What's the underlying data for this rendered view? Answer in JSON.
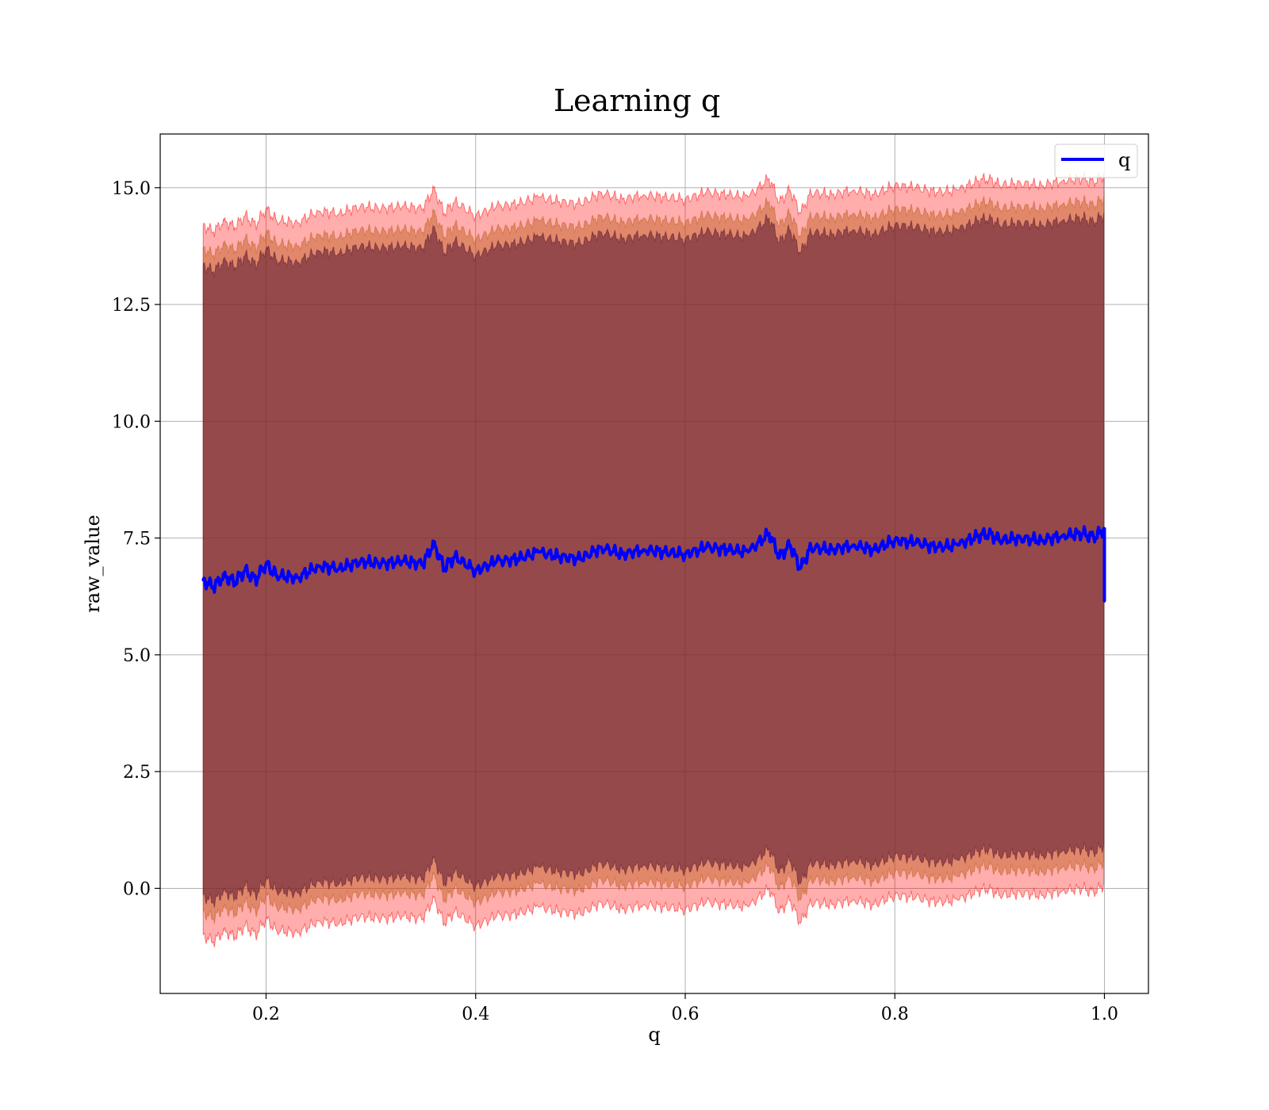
{
  "chart_data": {
    "type": "line",
    "title": "Learning q",
    "xlabel": "q",
    "ylabel": "raw_value",
    "xlim": [
      0.099,
      1.042
    ],
    "ylim": [
      -2.25,
      16.15
    ],
    "x_ticks": [
      0.2,
      0.4,
      0.6,
      0.8,
      1.0
    ],
    "y_ticks": [
      0.0,
      2.5,
      5.0,
      7.5,
      10.0,
      12.5,
      15.0
    ],
    "x_tick_labels": [
      "0.2",
      "0.4",
      "0.6",
      "0.8",
      "1.0"
    ],
    "y_tick_labels": [
      "0.0",
      "2.5",
      "5.0",
      "7.5",
      "10.0",
      "12.5",
      "15.0"
    ],
    "grid": true,
    "legend": {
      "position": "top-right",
      "entries": [
        "q"
      ]
    },
    "colors": {
      "line": "#0000ff",
      "band_outer": "#ff0000",
      "band_middle": "#bd5b1a",
      "band_inner": "#5a1630",
      "grid": "#b0b0b0"
    },
    "series": [
      {
        "name": "q",
        "x": [
          0.14,
          0.15,
          0.16,
          0.17,
          0.18,
          0.19,
          0.2,
          0.21,
          0.23,
          0.25,
          0.27,
          0.29,
          0.31,
          0.33,
          0.35,
          0.36,
          0.37,
          0.38,
          0.4,
          0.42,
          0.44,
          0.46,
          0.48,
          0.5,
          0.52,
          0.54,
          0.56,
          0.58,
          0.6,
          0.62,
          0.64,
          0.66,
          0.68,
          0.69,
          0.7,
          0.71,
          0.72,
          0.74,
          0.76,
          0.78,
          0.8,
          0.82,
          0.84,
          0.86,
          0.88,
          0.89,
          0.9,
          0.92,
          0.94,
          0.96,
          0.98,
          0.99,
          1.0,
          1.0
        ],
        "y": [
          6.6,
          6.45,
          6.7,
          6.55,
          6.8,
          6.6,
          6.95,
          6.7,
          6.65,
          6.9,
          6.85,
          7.0,
          6.95,
          7.0,
          6.95,
          7.4,
          6.85,
          7.1,
          6.8,
          7.0,
          7.05,
          7.2,
          7.1,
          7.05,
          7.3,
          7.15,
          7.25,
          7.2,
          7.15,
          7.3,
          7.25,
          7.2,
          7.6,
          7.1,
          7.35,
          6.85,
          7.3,
          7.25,
          7.35,
          7.25,
          7.45,
          7.4,
          7.3,
          7.35,
          7.55,
          7.6,
          7.45,
          7.5,
          7.45,
          7.55,
          7.6,
          7.5,
          7.7,
          6.15
        ]
      }
    ],
    "bands": [
      {
        "lower_offset": -7.6,
        "upper_offset": 7.6
      },
      {
        "lower_offset": -7.1,
        "upper_offset": 7.1
      },
      {
        "lower_offset": -6.75,
        "upper_offset": 6.75
      }
    ]
  }
}
